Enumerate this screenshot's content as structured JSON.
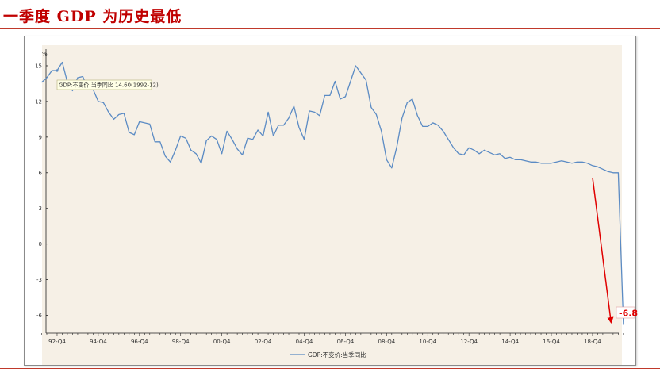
{
  "slide": {
    "title": "一季度 GDP 为历史最低"
  },
  "chart_data": {
    "type": "line",
    "ylabel": "%",
    "ylim": [
      -7.5,
      16
    ],
    "y_ticks": [
      "15",
      "12",
      "9",
      "6",
      "3",
      "0",
      "-3",
      "-6"
    ],
    "y_tick_values": [
      15,
      12,
      9,
      6,
      3,
      0,
      -3,
      -6
    ],
    "x_tick_labels": [
      "92-Q4",
      "94-Q4",
      "96-Q4",
      "98-Q4",
      "00-Q4",
      "02-Q4",
      "04-Q4",
      "06-Q4",
      "08-Q4",
      "10-Q4",
      "12-Q4",
      "14-Q4",
      "16-Q4",
      "18-Q4"
    ],
    "x_start": "1992-Q1",
    "legend_position": "bottom",
    "grid": false,
    "series": [
      {
        "name": "GDP:不变价:当季同比",
        "color": "#5b8bc4",
        "values": [
          13.6,
          14.0,
          14.6,
          14.6,
          15.3,
          13.6,
          12.9,
          14.0,
          14.1,
          13.0,
          13.0,
          12.0,
          11.9,
          11.1,
          10.5,
          10.9,
          11.0,
          9.4,
          9.2,
          10.3,
          10.2,
          10.1,
          8.6,
          8.6,
          7.4,
          6.9,
          7.9,
          9.1,
          8.9,
          7.9,
          7.6,
          6.8,
          8.7,
          9.1,
          8.8,
          7.6,
          9.5,
          8.8,
          8.0,
          7.5,
          8.9,
          8.8,
          9.6,
          9.1,
          11.1,
          9.1,
          10.0,
          10.0,
          10.6,
          11.6,
          9.8,
          8.8,
          11.2,
          11.1,
          10.8,
          12.5,
          12.5,
          13.7,
          12.2,
          12.4,
          13.7,
          15.0,
          14.4,
          13.8,
          11.5,
          10.9,
          9.5,
          7.1,
          6.4,
          8.2,
          10.6,
          11.9,
          12.2,
          10.8,
          9.9,
          9.9,
          10.2,
          10.0,
          9.5,
          8.8,
          8.1,
          7.6,
          7.5,
          8.1,
          7.9,
          7.6,
          7.9,
          7.7,
          7.5,
          7.6,
          7.2,
          7.3,
          7.1,
          7.1,
          7.0,
          6.9,
          6.9,
          6.8,
          6.8,
          6.8,
          6.9,
          7.0,
          6.9,
          6.8,
          6.9,
          6.9,
          6.8,
          6.6,
          6.5,
          6.3,
          6.1,
          6.0,
          6.0,
          -6.8
        ]
      }
    ],
    "tooltip": {
      "text": "GDP:不变价:当季同比 14.60(1992-12)",
      "value": 14.6,
      "period": "1992-12"
    },
    "callout": {
      "label": "-6.8",
      "value": -6.8,
      "period": "2020-Q1",
      "arrow_color": "#e00000"
    }
  }
}
